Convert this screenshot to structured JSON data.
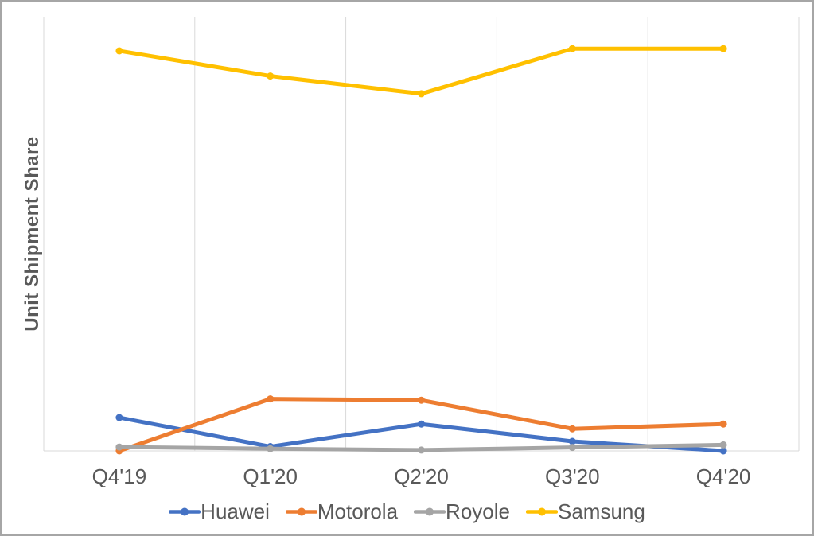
{
  "frame": {
    "border_color": "#A6A6A6",
    "background_color": "#FFFFFF"
  },
  "chart_data": {
    "type": "line",
    "title": "",
    "xlabel": "",
    "ylabel": "Unit Shipment Share",
    "categories": [
      "Q4'19",
      "Q1'20",
      "Q2'20",
      "Q3'20",
      "Q4'20"
    ],
    "series": [
      {
        "name": "Huawei",
        "color": "#4472C4",
        "values": [
          7.7,
          1.0,
          6.2,
          2.2,
          0.0
        ]
      },
      {
        "name": "Motorola",
        "color": "#ED7D31",
        "values": [
          0.0,
          12.0,
          11.7,
          5.1,
          6.2
        ]
      },
      {
        "name": "Royole",
        "color": "#A5A5A5",
        "values": [
          0.9,
          0.5,
          0.2,
          0.8,
          1.4
        ]
      },
      {
        "name": "Samsung",
        "color": "#FFC000",
        "values": [
          92.3,
          86.5,
          82.4,
          92.8,
          92.8
        ]
      }
    ],
    "units": "percent share (y-axis unlabeled, 0-100)",
    "ylim": [
      0,
      100
    ],
    "y_tick_labels_visible": false,
    "gridlines": "vertical-only",
    "gridline_color": "#D9D9D9",
    "axis_line_color": "#D9D9D9",
    "axis_text_color": "#595959",
    "legend_position": "bottom"
  }
}
